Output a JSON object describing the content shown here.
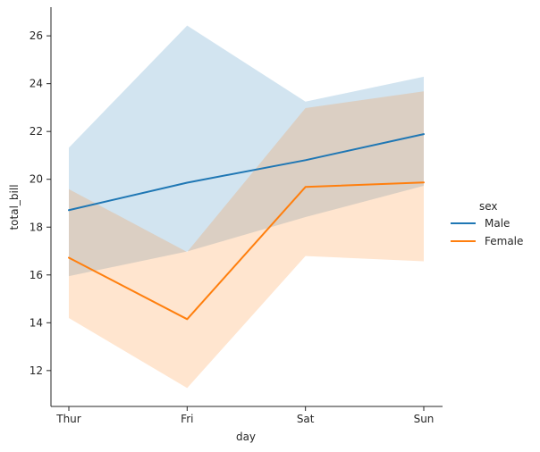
{
  "chart_data": {
    "type": "line",
    "title": "",
    "xlabel": "day",
    "ylabel": "total_bill",
    "categories": [
      "Thur",
      "Fri",
      "Sat",
      "Sun"
    ],
    "ylim": [
      10.5,
      27.2
    ],
    "yticks": [
      12,
      14,
      16,
      18,
      20,
      22,
      24,
      26
    ],
    "grid": false,
    "legend": {
      "title": "sex",
      "placement": "right"
    },
    "series": [
      {
        "name": "Male",
        "color": "#1f77b4",
        "values": [
          18.71,
          19.86,
          20.8,
          21.89
        ],
        "ci_low": [
          15.95,
          16.98,
          18.42,
          19.73
        ],
        "ci_high": [
          21.32,
          26.43,
          23.25,
          24.29
        ]
      },
      {
        "name": "Female",
        "color": "#ff7f0e",
        "values": [
          16.72,
          14.15,
          19.68,
          19.87
        ],
        "ci_low": [
          14.2,
          11.27,
          16.79,
          16.57
        ],
        "ci_high": [
          19.59,
          16.96,
          22.98,
          23.68
        ]
      }
    ]
  }
}
